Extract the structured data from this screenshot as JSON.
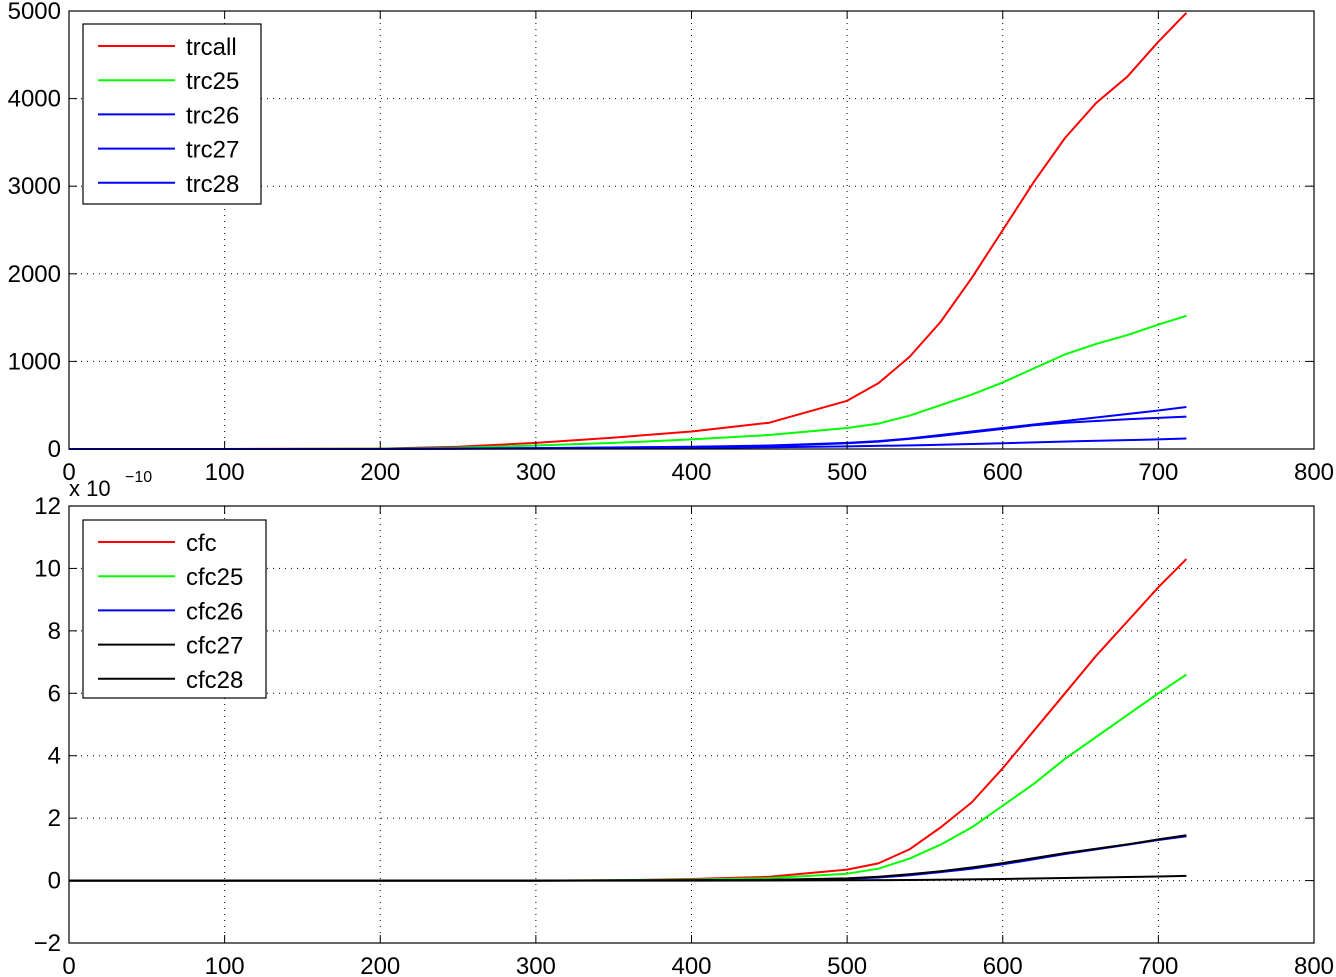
{
  "chart_data": [
    {
      "type": "line",
      "title": "",
      "xlabel": "",
      "ylabel": "",
      "xlim": [
        0,
        800
      ],
      "ylim": [
        0,
        5000
      ],
      "xticks": [
        0,
        100,
        200,
        300,
        400,
        500,
        600,
        700,
        800
      ],
      "yticks": [
        0,
        1000,
        2000,
        3000,
        4000,
        5000
      ],
      "xtick_labels": [
        "0",
        "100",
        "200",
        "300",
        "400",
        "500",
        "600",
        "700",
        "800"
      ],
      "ytick_labels": [
        "0",
        "1000",
        "2000",
        "3000",
        "4000",
        "5000"
      ],
      "grid": true,
      "legend_position": "top-left",
      "series": [
        {
          "name": "trcall",
          "color": "#ff0000",
          "x": [
            0,
            100,
            200,
            250,
            300,
            350,
            400,
            450,
            500,
            520,
            540,
            560,
            580,
            600,
            620,
            640,
            660,
            680,
            700,
            718
          ],
          "y": [
            0,
            0,
            5,
            25,
            70,
            130,
            200,
            300,
            550,
            750,
            1050,
            1450,
            1950,
            2500,
            3050,
            3550,
            3950,
            4250,
            4650,
            4980
          ]
        },
        {
          "name": "trc25",
          "color": "#00ff00",
          "x": [
            0,
            100,
            200,
            250,
            300,
            350,
            400,
            450,
            500,
            520,
            540,
            560,
            580,
            600,
            620,
            640,
            660,
            680,
            700,
            718
          ],
          "y": [
            0,
            0,
            3,
            15,
            40,
            70,
            110,
            160,
            240,
            290,
            380,
            500,
            620,
            760,
            920,
            1080,
            1200,
            1300,
            1420,
            1520
          ]
        },
        {
          "name": "trc26",
          "color": "#0000ff",
          "x": [
            0,
            100,
            200,
            300,
            400,
            450,
            500,
            520,
            540,
            560,
            580,
            600,
            620,
            640,
            660,
            680,
            700,
            718
          ],
          "y": [
            0,
            0,
            0,
            10,
            25,
            40,
            70,
            90,
            120,
            160,
            200,
            240,
            280,
            320,
            360,
            400,
            440,
            480
          ]
        },
        {
          "name": "trc27",
          "color": "#0000ff",
          "x": [
            0,
            100,
            200,
            300,
            400,
            450,
            500,
            520,
            540,
            560,
            580,
            600,
            620,
            640,
            660,
            680,
            700,
            718
          ],
          "y": [
            0,
            0,
            0,
            8,
            22,
            35,
            65,
            85,
            115,
            150,
            190,
            230,
            270,
            300,
            320,
            340,
            355,
            370
          ]
        },
        {
          "name": "trc28",
          "color": "#0000ff",
          "x": [
            0,
            100,
            200,
            300,
            400,
            450,
            500,
            550,
            600,
            650,
            700,
            718
          ],
          "y": [
            0,
            0,
            0,
            5,
            12,
            20,
            30,
            45,
            65,
            90,
            110,
            120
          ]
        }
      ]
    },
    {
      "type": "line",
      "title": "",
      "xlabel": "",
      "ylabel": "",
      "scale_exponent_label": "x 10",
      "scale_exponent": "−10",
      "xlim": [
        0,
        800
      ],
      "ylim": [
        -2,
        12
      ],
      "xticks": [
        0,
        100,
        200,
        300,
        400,
        500,
        600,
        700,
        800
      ],
      "yticks": [
        -2,
        0,
        2,
        4,
        6,
        8,
        10,
        12
      ],
      "xtick_labels": [
        "0",
        "100",
        "200",
        "300",
        "400",
        "500",
        "600",
        "700",
        "800"
      ],
      "ytick_labels": [
        "−2",
        "0",
        "2",
        "4",
        "6",
        "8",
        "10",
        "12"
      ],
      "grid": true,
      "legend_position": "top-left",
      "series": [
        {
          "name": "cfc",
          "color": "#ff0000",
          "x": [
            0,
            250,
            300,
            350,
            400,
            450,
            500,
            520,
            540,
            560,
            580,
            600,
            620,
            640,
            660,
            680,
            700,
            718
          ],
          "y": [
            0,
            0,
            0,
            0.01,
            0.05,
            0.12,
            0.35,
            0.55,
            1.0,
            1.7,
            2.5,
            3.6,
            4.8,
            6.0,
            7.2,
            8.3,
            9.4,
            10.3
          ]
        },
        {
          "name": "cfc25",
          "color": "#00ff00",
          "x": [
            0,
            250,
            300,
            350,
            400,
            450,
            500,
            520,
            540,
            560,
            580,
            600,
            620,
            640,
            660,
            680,
            700,
            718
          ],
          "y": [
            0,
            0,
            0,
            0.01,
            0.03,
            0.08,
            0.22,
            0.38,
            0.7,
            1.15,
            1.7,
            2.4,
            3.1,
            3.9,
            4.6,
            5.3,
            6.0,
            6.6
          ]
        },
        {
          "name": "cfc26",
          "color": "#0000ff",
          "x": [
            0,
            300,
            400,
            450,
            500,
            520,
            540,
            560,
            580,
            600,
            620,
            640,
            660,
            680,
            700,
            718
          ],
          "y": [
            0,
            0,
            0.01,
            0.02,
            0.06,
            0.1,
            0.17,
            0.27,
            0.38,
            0.52,
            0.68,
            0.85,
            1.0,
            1.15,
            1.3,
            1.42
          ]
        },
        {
          "name": "cfc27",
          "color": "#000000",
          "x": [
            0,
            300,
            400,
            450,
            500,
            520,
            540,
            560,
            580,
            600,
            620,
            640,
            660,
            680,
            700,
            718
          ],
          "y": [
            0,
            0,
            0.01,
            0.02,
            0.07,
            0.12,
            0.2,
            0.3,
            0.42,
            0.56,
            0.72,
            0.88,
            1.02,
            1.16,
            1.32,
            1.45
          ]
        },
        {
          "name": "cfc28",
          "color": "#000000",
          "x": [
            0,
            400,
            500,
            550,
            600,
            650,
            700,
            718
          ],
          "y": [
            0,
            0,
            0.01,
            0.02,
            0.05,
            0.09,
            0.13,
            0.15
          ]
        }
      ]
    }
  ]
}
